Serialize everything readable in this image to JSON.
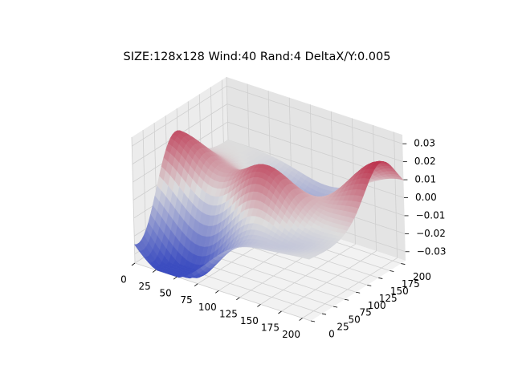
{
  "chart_data": {
    "type": "surface",
    "title": "SIZE:128x128 Wind:40 Rand:4 DeltaX/Y:0.005",
    "xlabel": "",
    "ylabel": "",
    "zlabel": "",
    "xlim": [
      0,
      210
    ],
    "ylim": [
      0,
      210
    ],
    "zlim": [
      -0.035,
      0.035
    ],
    "x_ticks": [
      0,
      25,
      50,
      75,
      100,
      125,
      150,
      175,
      200
    ],
    "y_ticks": [
      0,
      25,
      50,
      75,
      100,
      125,
      150,
      175,
      200
    ],
    "z_ticks": [
      -0.03,
      -0.02,
      -0.01,
      0.0,
      0.01,
      0.02,
      0.03
    ],
    "x_tick_labels": [
      "0",
      "25",
      "50",
      "75",
      "100",
      "125",
      "150",
      "175",
      "200"
    ],
    "y_tick_labels": [
      "0",
      "25",
      "50",
      "75",
      "100",
      "125",
      "150",
      "175",
      "200"
    ],
    "z_tick_labels": [
      "−0.03",
      "−0.02",
      "−0.01",
      "0.00",
      "0.01",
      "0.02",
      "0.03"
    ],
    "colormap": "coolwarm",
    "grid": true,
    "grid_size": 128,
    "surface_components": [
      {
        "x": 0,
        "y": 90,
        "amplitude": 0.025
      },
      {
        "x": 210,
        "y": 160,
        "amplitude": 0.028
      },
      {
        "x": 110,
        "y": 80,
        "amplitude": 0.03
      },
      {
        "x": 70,
        "y": 30,
        "amplitude": -0.03
      },
      {
        "x": 150,
        "y": 50,
        "amplitude": -0.01
      },
      {
        "x": 20,
        "y": 10,
        "amplitude": -0.028
      },
      {
        "x": 120,
        "y": 170,
        "amplitude": -0.015
      }
    ],
    "surface_spread": 35
  },
  "colors": {
    "pane_left": "#ececec",
    "pane_right": "#e4e4e4",
    "pane_floor": "#f2f2f2",
    "grid": "#cfcfcf",
    "cmap_low": "#3b4cc0",
    "cmap_mid": "#dddddd",
    "cmap_high": "#b40426"
  }
}
